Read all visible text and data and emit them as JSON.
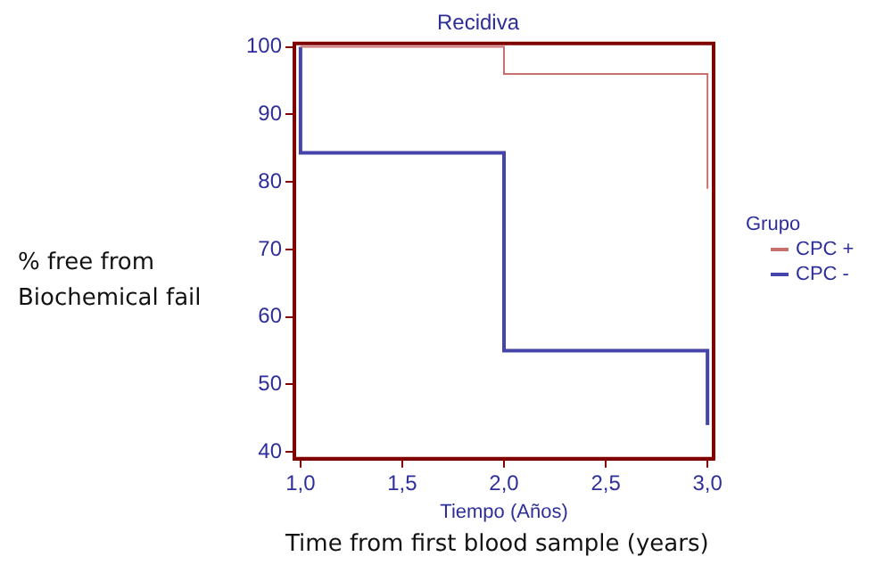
{
  "chart_data": {
    "type": "step",
    "title": "Recidiva",
    "xlabel": "Tiempo (Años)",
    "legend_title": "Grupo",
    "legend": "right",
    "annotations": [
      "% free from Biochemical fail",
      "Time from  first blood sample (years)"
    ],
    "series": [
      {
        "name": "CPC +",
        "color": "#c87070",
        "x": [
          1,
          2,
          3,
          3
        ],
        "values": [
          100,
          96,
          96,
          79
        ]
      },
      {
        "name": "CPC -",
        "color": "#4444aa",
        "x": [
          1,
          1,
          2,
          3,
          3
        ],
        "values": [
          100,
          84.3,
          55,
          55,
          44
        ]
      }
    ],
    "xlim": [
      0.97,
      3.03
    ],
    "xticks": [
      {
        "value": 1,
        "label": "1,0"
      },
      {
        "value": 1.5,
        "label": "1,5"
      },
      {
        "value": 2,
        "label": "2,0"
      },
      {
        "value": 2.5,
        "label": "2,5"
      },
      {
        "value": 3,
        "label": "3,0"
      }
    ],
    "ylim": [
      39,
      100.5
    ],
    "yticks": [
      40,
      50,
      60,
      70,
      80,
      90,
      100
    ],
    "grid": false
  }
}
